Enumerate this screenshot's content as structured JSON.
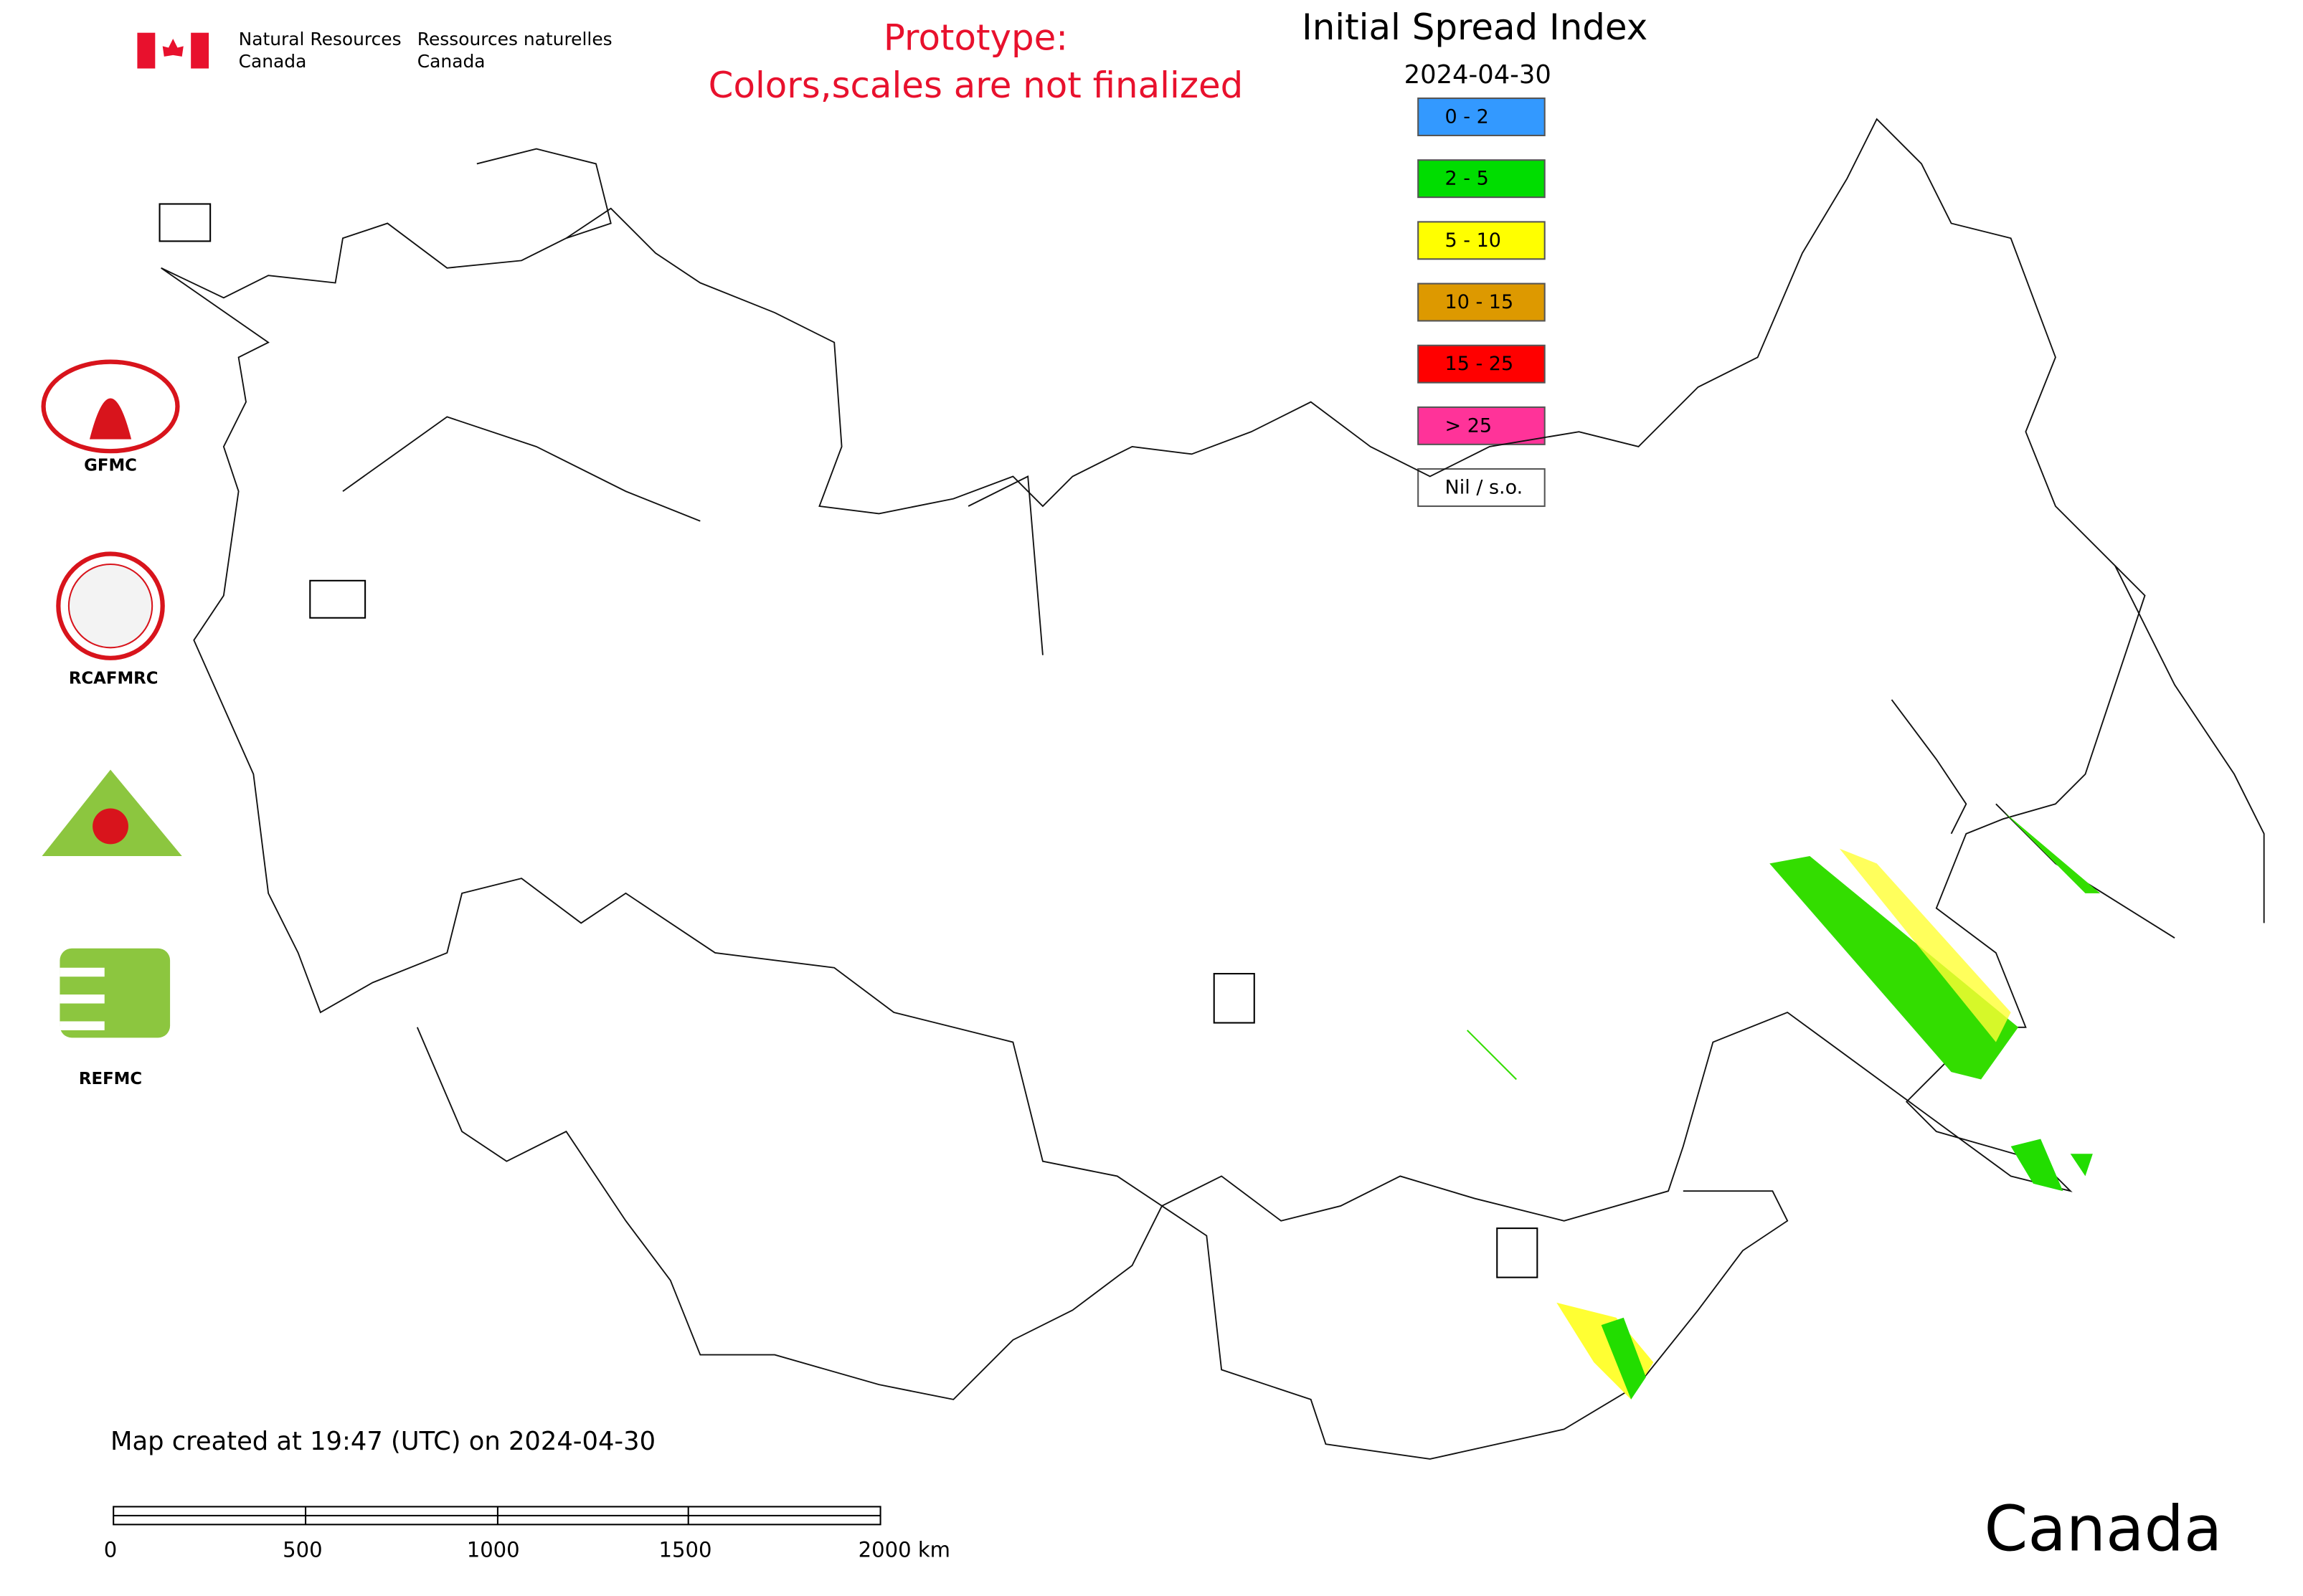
{
  "header": {
    "agency_en": [
      "Natural Resources",
      "Canada"
    ],
    "agency_fr": [
      "Ressources naturelles",
      "Canada"
    ]
  },
  "notice": [
    "Prototype:",
    "Colors,scales are not finalized"
  ],
  "legend": {
    "title": "Initial Spread Index",
    "date": "2024-04-30",
    "items": [
      {
        "label": "0 - 2",
        "color": "#3399ff"
      },
      {
        "label": "2 - 5",
        "color": "#00dd00"
      },
      {
        "label": "5 - 10",
        "color": "#ffff00"
      },
      {
        "label": "10 - 15",
        "color": "#dd9900"
      },
      {
        "label": "15 - 25",
        "color": "#ff0000"
      },
      {
        "label": "> 25",
        "color": "#ff3399"
      },
      {
        "label": "Nil / s.o.",
        "color": "#ffffff"
      }
    ]
  },
  "logos": [
    "GFMC",
    "RCAFMRC",
    "REFMC"
  ],
  "footer": {
    "created": "Map created at 19:47 (UTC) on 2024-04-30",
    "scale": [
      "0",
      "500",
      "1000",
      "1500",
      "2000 km"
    ],
    "wordmark": "Canada"
  }
}
